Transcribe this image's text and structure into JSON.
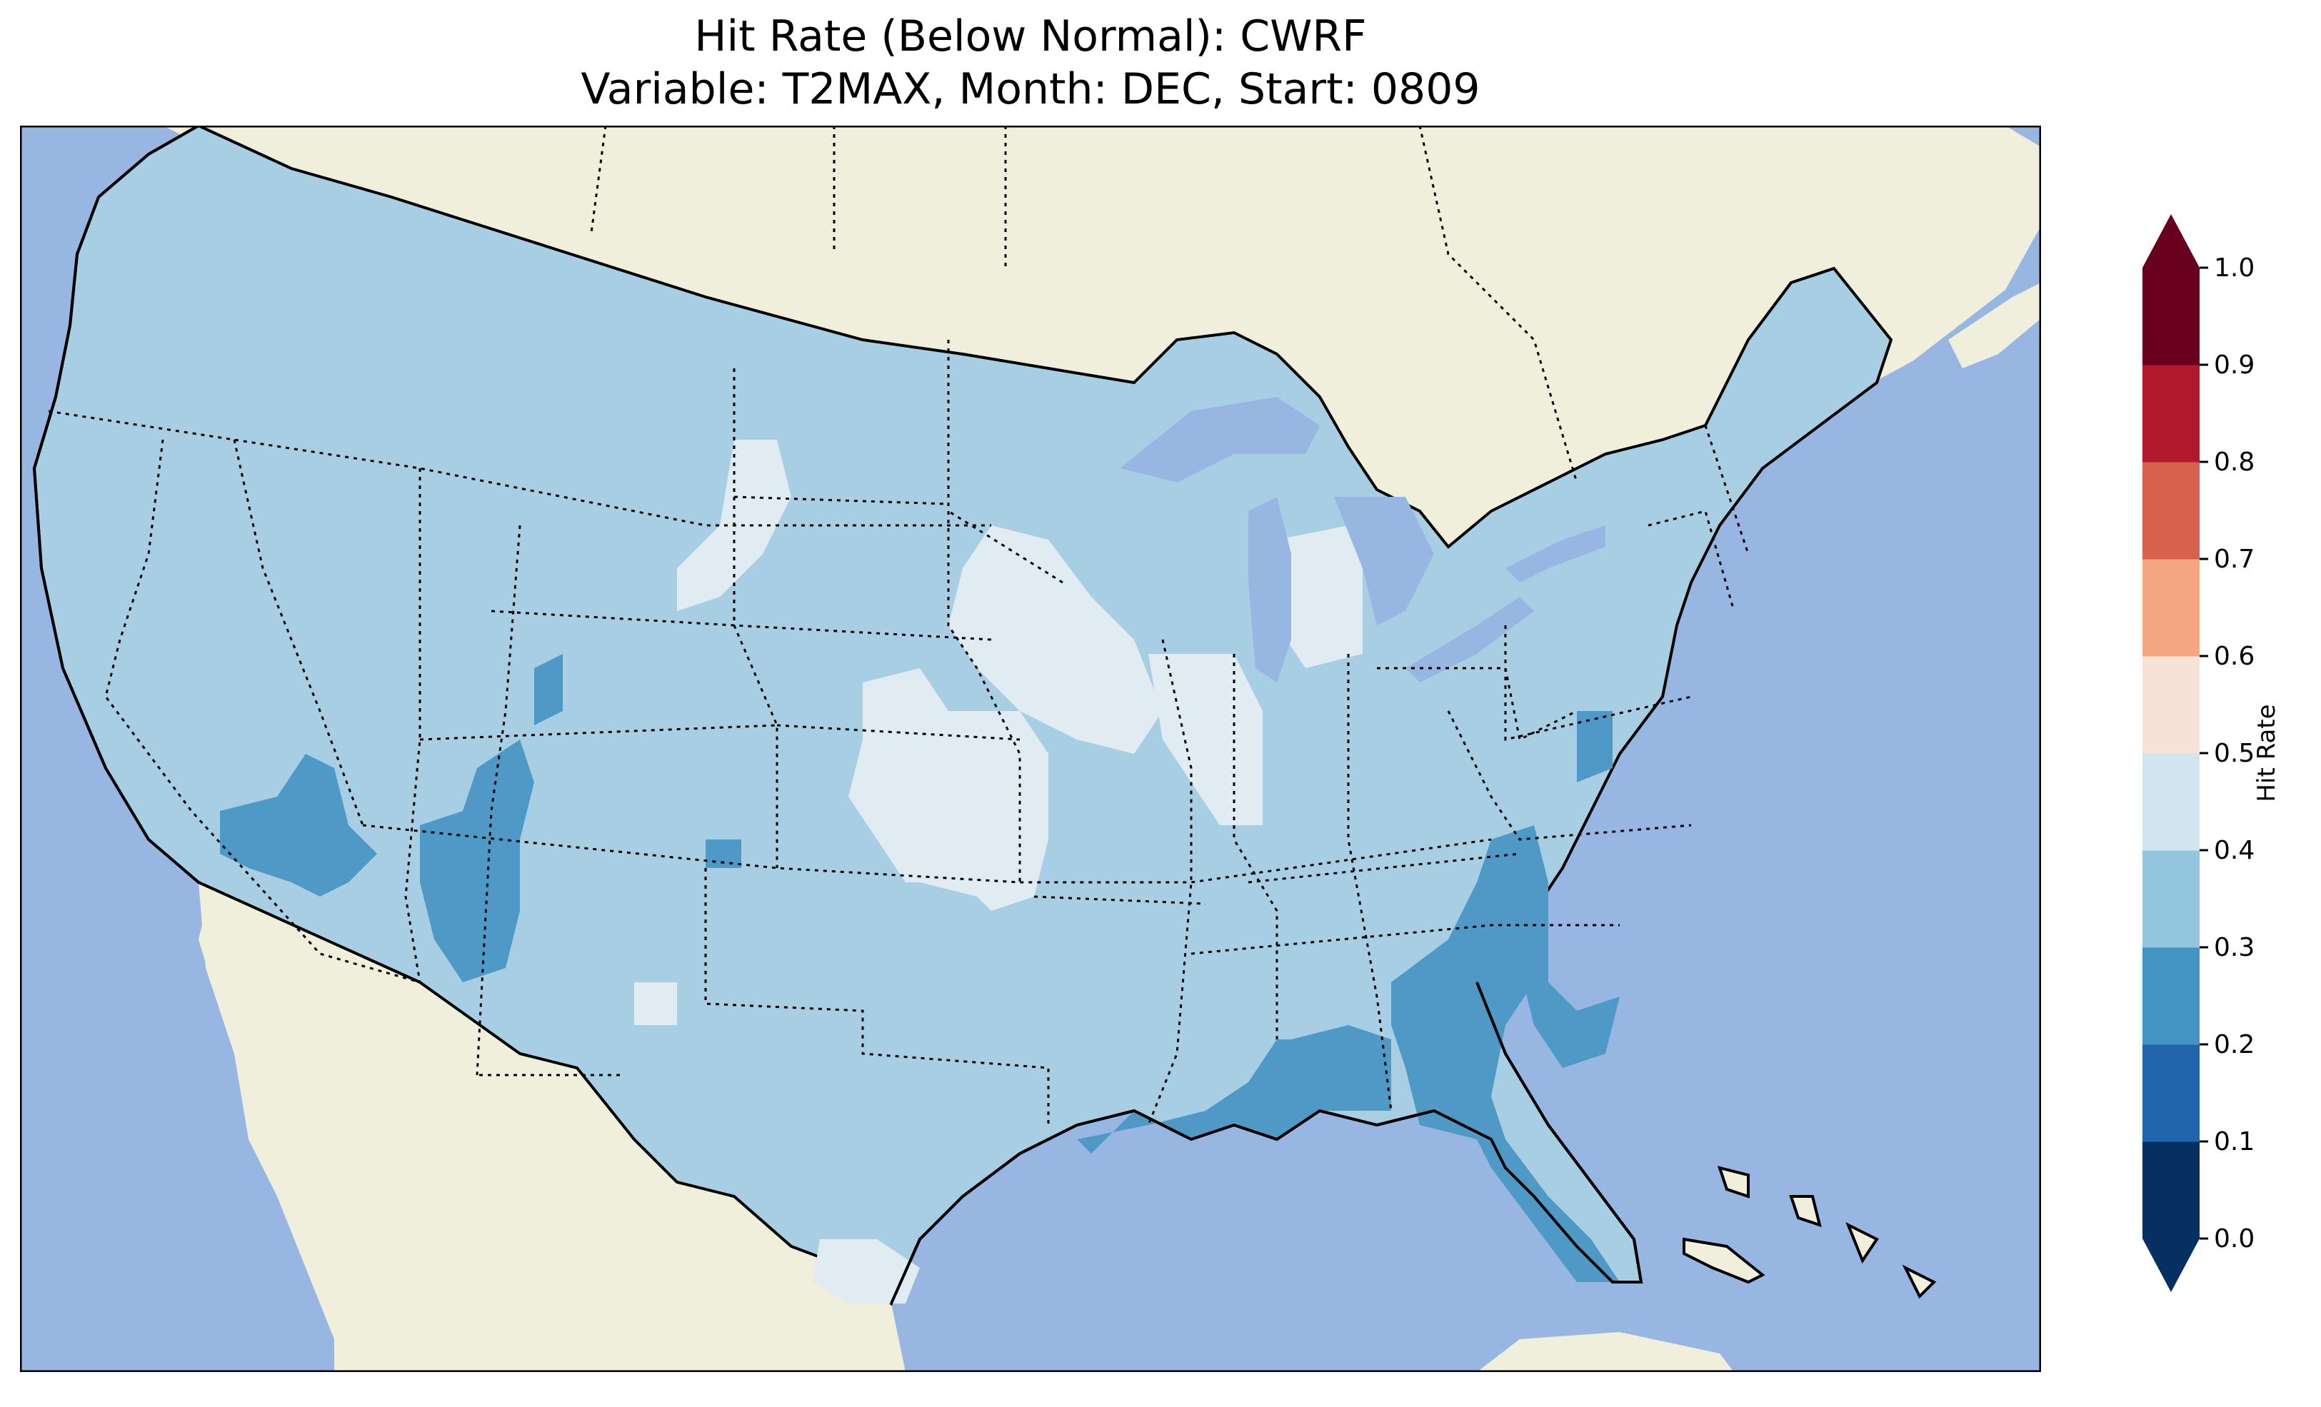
{
  "figure": {
    "title_line_1": "Hit Rate (Below Normal): CWRF",
    "title_line_2": "Variable: T2MAX, Month: DEC, Start: 0809"
  },
  "map": {
    "ocean_color": "#97b6e1",
    "land_color": "#efefdb",
    "border_color": "#000000",
    "layers": [
      "coastlines",
      "country-borders",
      "state-borders",
      "lakes",
      "hit-rate-grid"
    ]
  },
  "colorbar": {
    "label": "Hit Rate",
    "ticks": [
      "0.0",
      "0.1",
      "0.2",
      "0.3",
      "0.4",
      "0.5",
      "0.6",
      "0.7",
      "0.8",
      "0.9",
      "1.0"
    ],
    "bins": [
      {
        "range": "0.0-0.1",
        "color": "#053061"
      },
      {
        "range": "0.1-0.2",
        "color": "#2166ac"
      },
      {
        "range": "0.2-0.3",
        "color": "#4393c3"
      },
      {
        "range": "0.3-0.4",
        "color": "#92c5de"
      },
      {
        "range": "0.4-0.5",
        "color": "#d1e5f0"
      },
      {
        "range": "0.5-0.6",
        "color": "#f7e2d8"
      },
      {
        "range": "0.6-0.7",
        "color": "#f4a582"
      },
      {
        "range": "0.7-0.8",
        "color": "#d6604d"
      },
      {
        "range": "0.8-0.9",
        "color": "#b2182b"
      },
      {
        "range": "0.9-1.0",
        "color": "#67001f"
      }
    ],
    "extend_under_color": "#053061",
    "extend_over_color": "#67001f"
  },
  "regions": {
    "base_value": "0.3-0.4",
    "zones_0_4_to_0_5": [
      "central-plains",
      "iowa-minnesota",
      "illinois",
      "lower-michigan",
      "western-dakotas",
      "south-texas",
      "new-mexico-spot",
      "west-texas-spot"
    ],
    "zones_0_2_to_0_3": [
      "nevada",
      "utah-arizona",
      "colorado-spot",
      "gulf-coast",
      "georgia-florida",
      "carolinas",
      "virginia-spot",
      "wyoming-spot"
    ]
  }
}
